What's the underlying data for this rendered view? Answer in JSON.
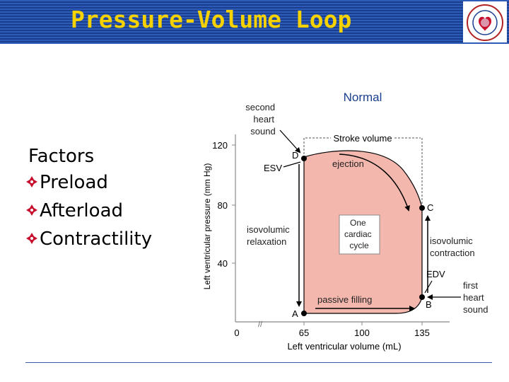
{
  "header": {
    "title": "Pressure-Volume Loop"
  },
  "factors": {
    "title": "Factors",
    "items": [
      "Preload",
      "Afterload",
      "Contractility"
    ]
  },
  "diagram": {
    "subtitle": "Normal",
    "y_axis_label": "Left ventricular pressure (mm Hg)",
    "x_axis_label": "Left ventricular volume (mL)",
    "y_ticks": [
      "120",
      "80",
      "40"
    ],
    "x_ticks": [
      "0",
      "65",
      "100",
      "135"
    ],
    "points": {
      "a": "A",
      "b": "B",
      "c": "C",
      "d": "D"
    },
    "labels": {
      "second_heart_sound": [
        "second",
        "heart",
        "sound"
      ],
      "esv": "ESV",
      "stroke_volume": "Stroke volume",
      "ejection": "ejection",
      "isovolumic_relaxation": [
        "isovolumic",
        "relaxation"
      ],
      "one_cardiac_cycle": [
        "One",
        "cardiac",
        "cycle"
      ],
      "isovolumic_contraction": [
        "isovolumic",
        "contraction"
      ],
      "edv": "EDV",
      "first_heart_sound": [
        "first",
        "heart",
        "sound"
      ],
      "passive_filling": "passive filling"
    },
    "colors": {
      "loop_fill": "#f4b7ae",
      "accent": "#1a3f8f",
      "title_yellow": "#f5d200"
    }
  }
}
